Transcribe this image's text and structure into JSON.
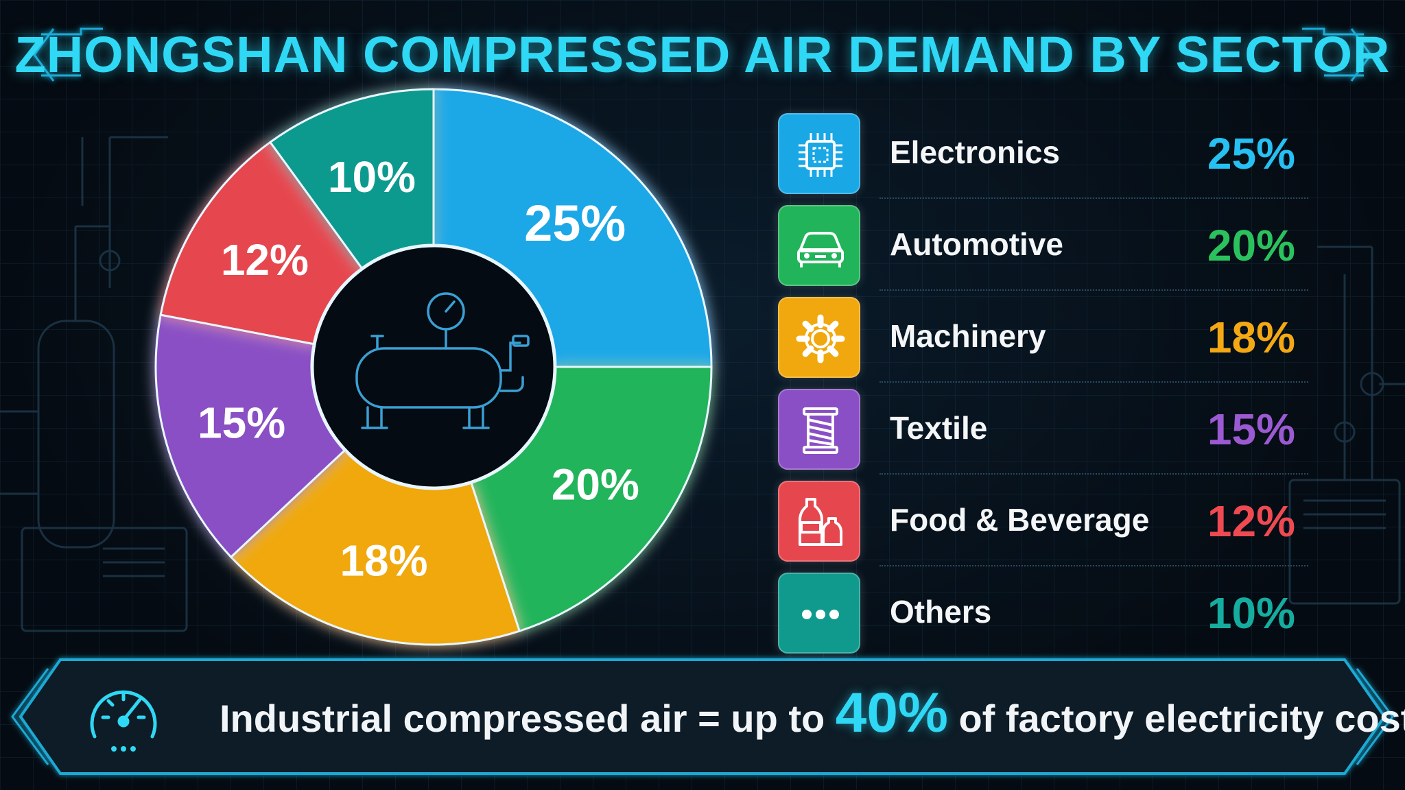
{
  "title": "ZHONGSHAN COMPRESSED AIR DEMAND BY SECTOR",
  "chart_data": {
    "type": "pie",
    "title": "ZHONGSHAN COMPRESSED AIR DEMAND BY SECTOR",
    "unit": "%",
    "legend_position": "right",
    "slices": [
      {
        "label": "Electronics",
        "value": 25,
        "display": "25%",
        "color": "#1aa7e6"
      },
      {
        "label": "Automotive",
        "value": 20,
        "display": "20%",
        "color": "#22b45a"
      },
      {
        "label": "Machinery",
        "value": 18,
        "display": "18%",
        "color": "#f0a80e"
      },
      {
        "label": "Textile",
        "value": 15,
        "display": "15%",
        "color": "#8a4fc4"
      },
      {
        "label": "Food & Beverage",
        "value": 12,
        "display": "12%",
        "color": "#e6474f"
      },
      {
        "label": "Others",
        "value": 10,
        "display": "10%",
        "color": "#109a8e"
      }
    ]
  },
  "legend_icons": [
    "chip-icon",
    "car-icon",
    "gear-icon",
    "thread-spool-icon",
    "bottles-icon",
    "more-dots-icon"
  ],
  "value_text_colors": [
    "#27c0f2",
    "#2bc25e",
    "#f4a914",
    "#9b5ad2",
    "#ef4a52",
    "#15ada0"
  ],
  "center_icon": "air-compressor-icon",
  "footer": {
    "icon": "gauge-icon",
    "text_before": "Industrial compressed air = up to ",
    "highlight": "40%",
    "text_after": " of factory electricity cost."
  }
}
